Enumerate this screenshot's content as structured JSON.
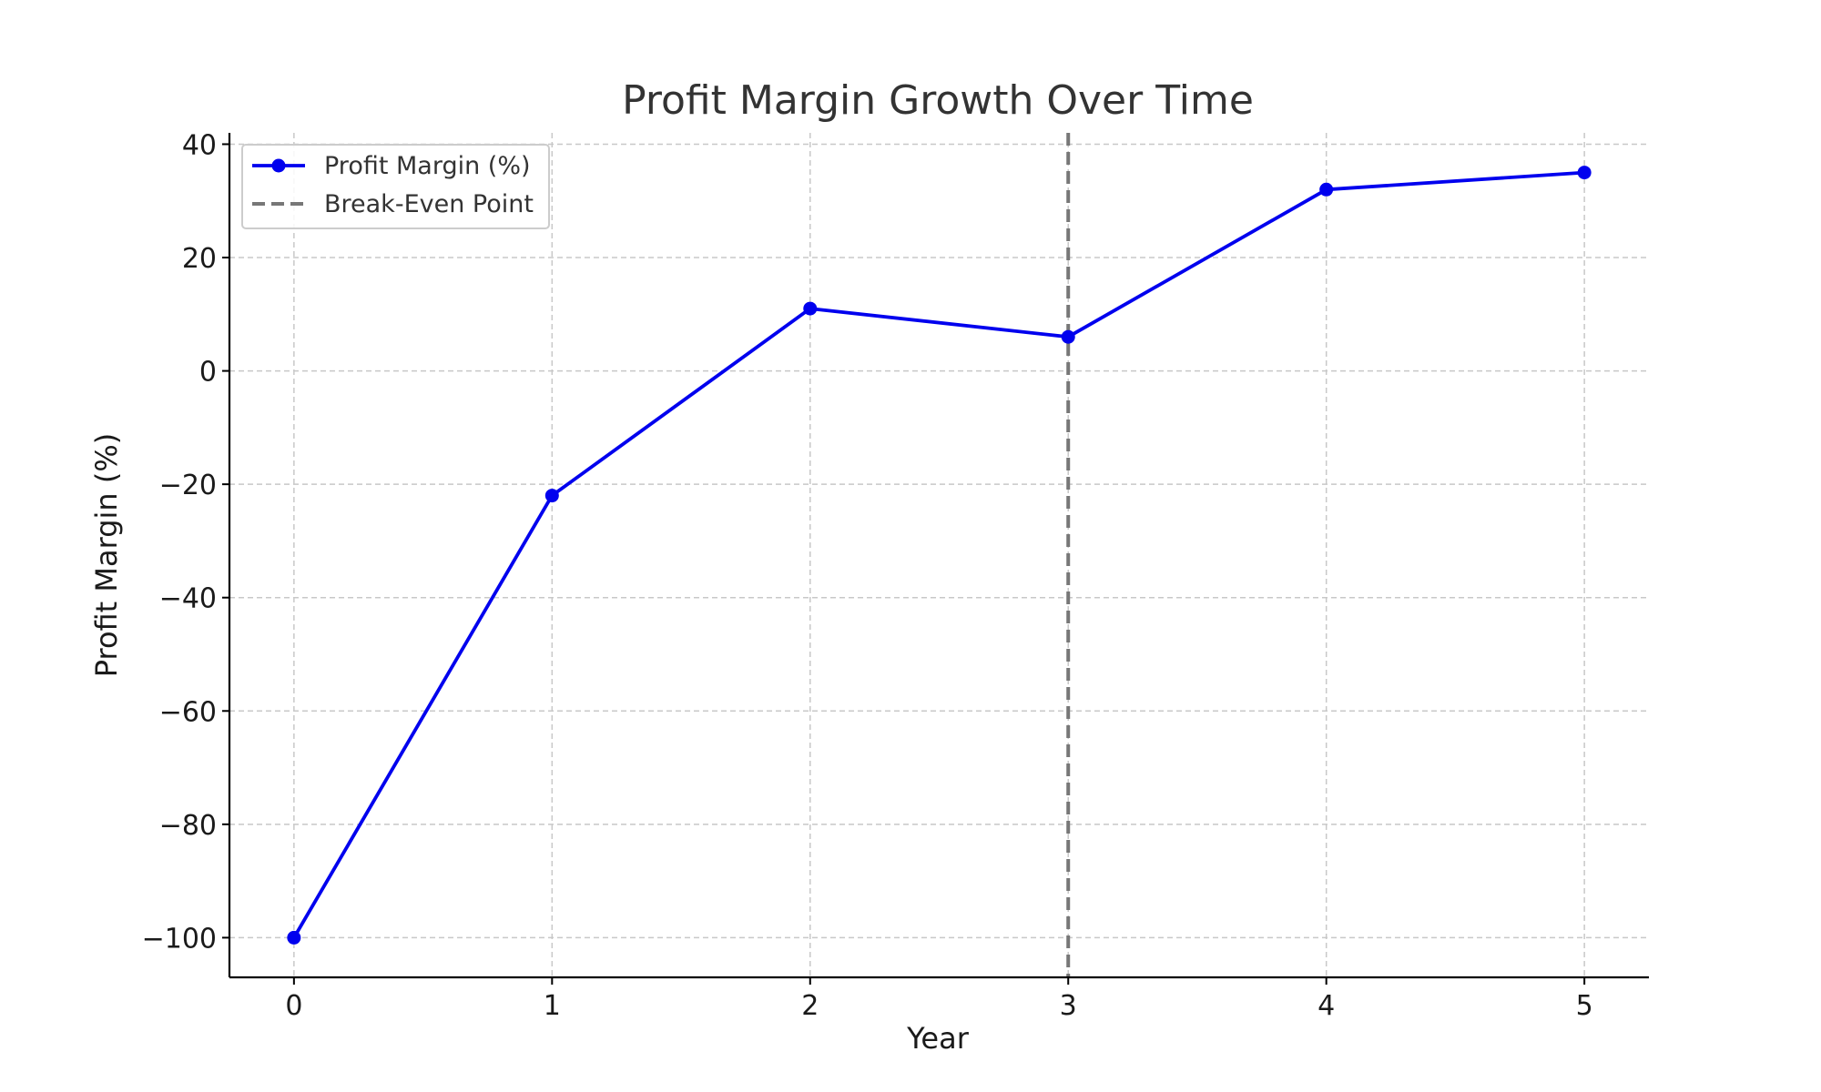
{
  "chart_data": {
    "type": "line",
    "title": "Profit Margin Growth Over Time",
    "xlabel": "Year",
    "ylabel": "Profit Margin (%)",
    "x": [
      0,
      1,
      2,
      3,
      4,
      5
    ],
    "series": [
      {
        "name": "Profit Margin (%)",
        "values": [
          -100,
          -22,
          11,
          6,
          32,
          35
        ],
        "color": "#0000ee",
        "marker": "circle"
      }
    ],
    "reference_lines": [
      {
        "name": "Break-Even Point",
        "orientation": "vertical",
        "x": 3,
        "color": "#777777",
        "style": "dashed"
      }
    ],
    "x_ticks": [
      0,
      1,
      2,
      3,
      4,
      5
    ],
    "y_ticks": [
      40,
      20,
      0,
      -20,
      -40,
      -60,
      -80,
      -100
    ],
    "y_tick_labels": [
      "40",
      "20",
      "0",
      "−20",
      "−40",
      "−60",
      "−80",
      "−100"
    ],
    "xlim": [
      -0.25,
      5.25
    ],
    "ylim": [
      -107,
      42
    ],
    "grid": true,
    "legend_position": "top-left"
  }
}
